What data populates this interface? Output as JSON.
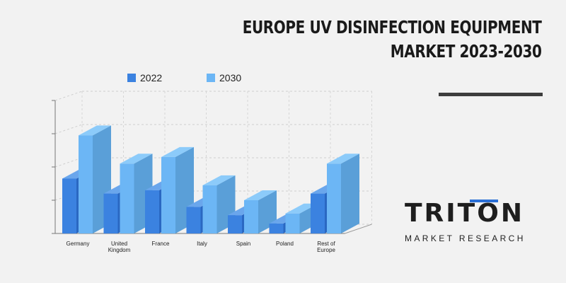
{
  "title": {
    "line1": "EUROPE UV DISINFECTION EQUIPMENT",
    "line2": "MARKET 2023-2030"
  },
  "colors": {
    "series_2022": "#3b82e0",
    "series_2030": "#6cb6f5",
    "rule": "#3d3d3d",
    "brand_accent": "#2a6fd6"
  },
  "brand": {
    "name": "TRITON",
    "tagline": "MARKET RESEARCH"
  },
  "chart_data": {
    "type": "bar",
    "categories": [
      "Germany",
      "United Kingdom",
      "France",
      "Italy",
      "Spain",
      "Poland",
      "Rest of Europe"
    ],
    "series": [
      {
        "name": "2022",
        "values": [
          3.3,
          2.4,
          2.6,
          1.6,
          1.1,
          0.6,
          2.4
        ]
      },
      {
        "name": "2030",
        "values": [
          5.9,
          4.2,
          4.6,
          2.9,
          2.0,
          1.2,
          4.2
        ]
      }
    ],
    "ylim": [
      0,
      8
    ],
    "grid": true,
    "legend_position": "top",
    "style": "3d"
  }
}
